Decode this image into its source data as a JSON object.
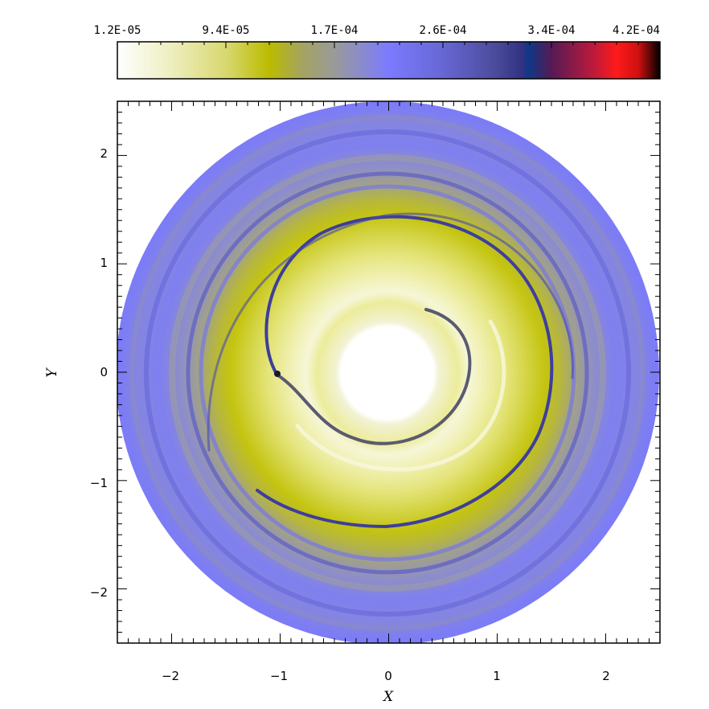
{
  "colorbar": {
    "tick_labels": [
      "1.2E-05",
      "9.4E-05",
      "1.7E-04",
      "2.6E-04",
      "3.4E-04",
      "4.2E-04"
    ],
    "stops": [
      {
        "offset": 0.0,
        "color": "#ffffff"
      },
      {
        "offset": 0.1,
        "color": "#eeeec0"
      },
      {
        "offset": 0.2,
        "color": "#d8d870"
      },
      {
        "offset": 0.28,
        "color": "#bbbb00"
      },
      {
        "offset": 0.34,
        "color": "#a4a460"
      },
      {
        "offset": 0.4,
        "color": "#9a9a9a"
      },
      {
        "offset": 0.5,
        "color": "#7b7bff"
      },
      {
        "offset": 0.6,
        "color": "#6767d4"
      },
      {
        "offset": 0.7,
        "color": "#4a4a9a"
      },
      {
        "offset": 0.75,
        "color": "#303080"
      },
      {
        "offset": 0.755,
        "color": "#0a3a8a"
      },
      {
        "offset": 0.8,
        "color": "#551a55"
      },
      {
        "offset": 0.88,
        "color": "#c01a3a"
      },
      {
        "offset": 0.92,
        "color": "#ff1a1a"
      },
      {
        "offset": 0.96,
        "color": "#d01010"
      },
      {
        "offset": 1.0,
        "color": "#000000"
      }
    ]
  },
  "axes": {
    "xlabel": "X",
    "ylabel": "Y",
    "x_tick_labels": [
      "−2",
      "−1",
      "0",
      "1",
      "2"
    ],
    "y_tick_labels": [
      "2",
      "1",
      "0",
      "−1",
      "−2"
    ],
    "xlim": [
      -2.5,
      2.5
    ],
    "ylim": [
      -2.5,
      2.5
    ]
  },
  "colors": {
    "disk_outer": "#7c7cf6",
    "disk_mid_gray": "#9a9aa0",
    "disk_inner_yellow": "#c8c810",
    "spiral_arm": "#3a3a90",
    "cavity": "#ffffff"
  }
}
